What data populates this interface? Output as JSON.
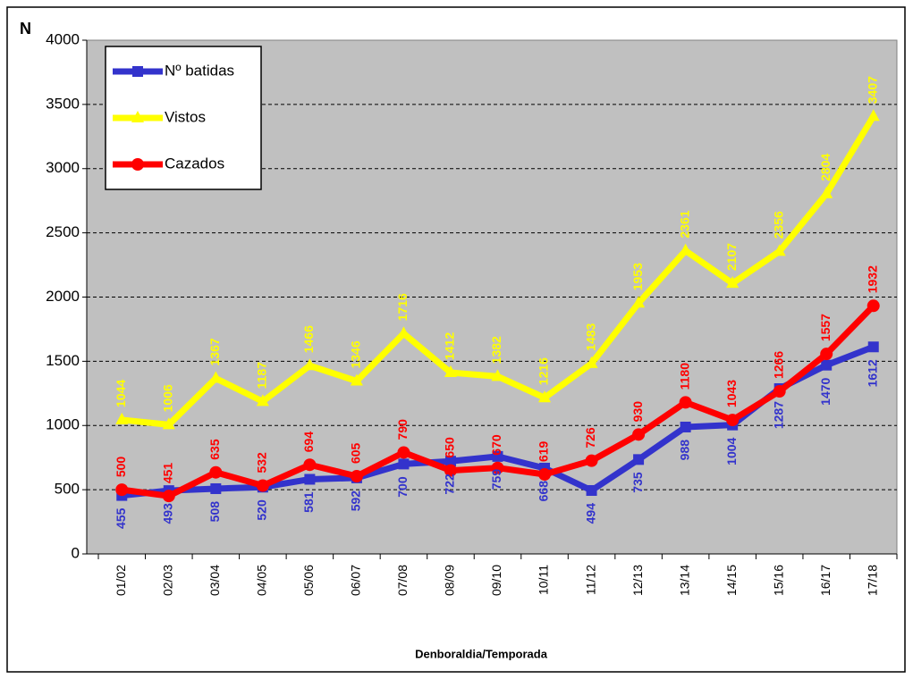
{
  "chart_data": {
    "type": "line",
    "y_label": "N",
    "x_label": "Denboraldia/Temporada",
    "categories": [
      "01/02",
      "02/03",
      "03/04",
      "04/05",
      "05/06",
      "06/07",
      "07/08",
      "08/09",
      "09/10",
      "10/11",
      "11/12",
      "12/13",
      "13/14",
      "14/15",
      "15/16",
      "16/17",
      "17/18"
    ],
    "series": [
      {
        "name": "Nº batidas",
        "color": "#3333cc",
        "marker": "square",
        "labels": "below",
        "values": [
          455,
          493,
          508,
          520,
          581,
          592,
          700,
          722,
          759,
          668,
          494,
          735,
          988,
          1004,
          1287,
          1470,
          1612
        ]
      },
      {
        "name": "Vistos",
        "color": "#ffff00",
        "marker": "triangle",
        "labels": "above",
        "values": [
          1044,
          1006,
          1367,
          1187,
          1466,
          1346,
          1716,
          1412,
          1382,
          1216,
          1483,
          1953,
          2361,
          2107,
          2356,
          2804,
          3407
        ]
      },
      {
        "name": "Cazados",
        "color": "#ff0000",
        "marker": "circle",
        "labels": "above",
        "values": [
          500,
          451,
          635,
          532,
          694,
          605,
          790,
          650,
          670,
          619,
          726,
          930,
          1180,
          1043,
          1266,
          1557,
          1932
        ]
      }
    ],
    "ylim": [
      0,
      4000
    ],
    "yticks": [
      0,
      500,
      1000,
      1500,
      2000,
      2500,
      3000,
      3500,
      4000
    ],
    "grid": true,
    "legend": "top-left"
  }
}
